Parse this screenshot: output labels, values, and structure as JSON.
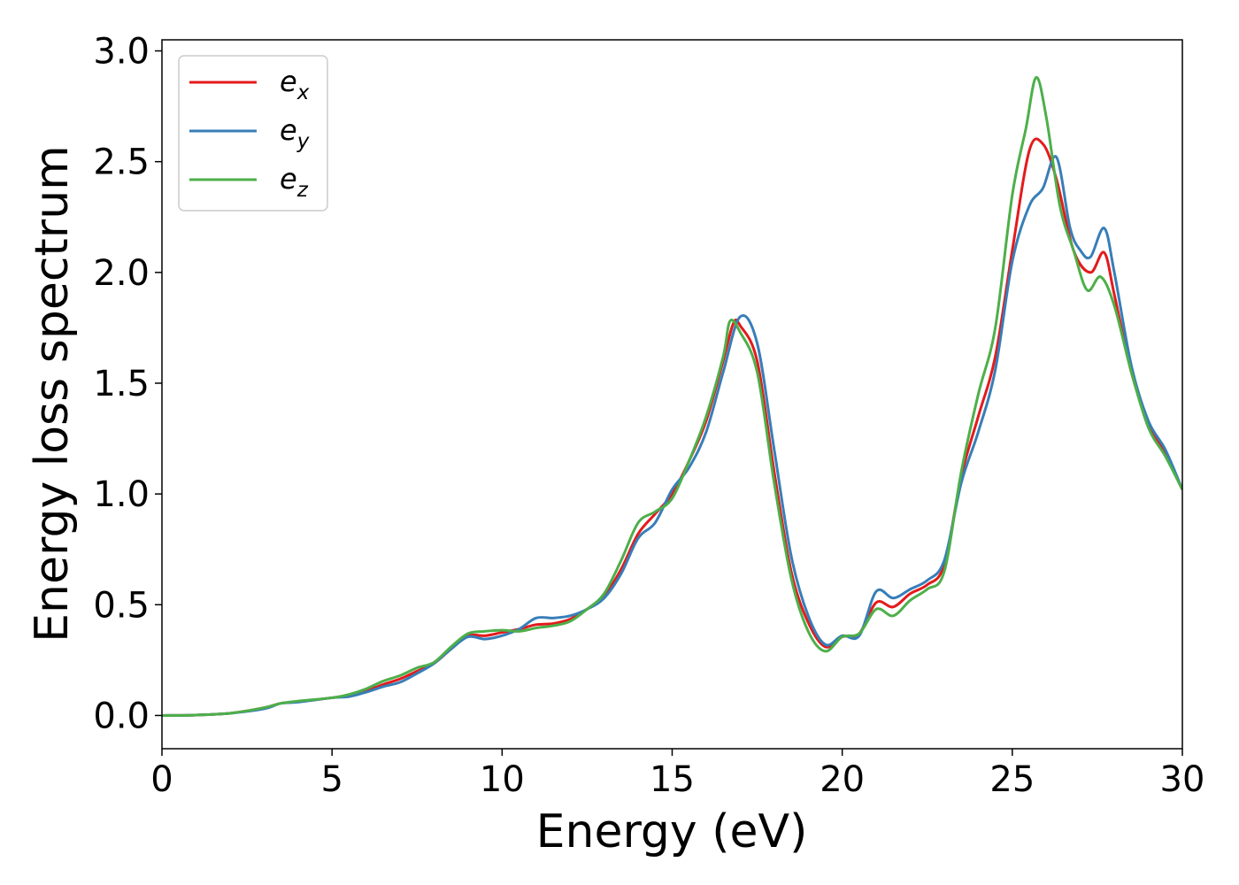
{
  "chart_data": {
    "type": "line",
    "title": "",
    "xlabel": "Energy (eV)",
    "ylabel": "Energy loss spectrum",
    "xlim": [
      0,
      30
    ],
    "ylim": [
      -0.15,
      3.05
    ],
    "xticks": [
      0,
      5,
      10,
      15,
      20,
      25,
      30
    ],
    "xtick_labels": [
      "0",
      "5",
      "10",
      "15",
      "20",
      "25",
      "30"
    ],
    "yticks": [
      0.0,
      0.5,
      1.0,
      1.5,
      2.0,
      2.5,
      3.0
    ],
    "ytick_labels": [
      "0.0",
      "0.5",
      "1.0",
      "1.5",
      "2.0",
      "2.5",
      "3.0"
    ],
    "grid": false,
    "legend_position": "top-left",
    "series": [
      {
        "name": "e_x",
        "legend_base": "e",
        "legend_sub": "x",
        "color": "#e41a1c",
        "points": [
          [
            0,
            0
          ],
          [
            1,
            0.002
          ],
          [
            2,
            0.01
          ],
          [
            3,
            0.035
          ],
          [
            3.5,
            0.055
          ],
          [
            4,
            0.062
          ],
          [
            5,
            0.08
          ],
          [
            5.5,
            0.09
          ],
          [
            6,
            0.11
          ],
          [
            6.5,
            0.14
          ],
          [
            7,
            0.165
          ],
          [
            7.5,
            0.2
          ],
          [
            8,
            0.235
          ],
          [
            8.5,
            0.3
          ],
          [
            9,
            0.36
          ],
          [
            9.5,
            0.36
          ],
          [
            10,
            0.375
          ],
          [
            10.5,
            0.39
          ],
          [
            11,
            0.41
          ],
          [
            11.5,
            0.415
          ],
          [
            12,
            0.435
          ],
          [
            12.5,
            0.48
          ],
          [
            13,
            0.54
          ],
          [
            13.5,
            0.66
          ],
          [
            14,
            0.82
          ],
          [
            14.5,
            0.91
          ],
          [
            15,
            1.0
          ],
          [
            15.5,
            1.15
          ],
          [
            16,
            1.33
          ],
          [
            16.5,
            1.6
          ],
          [
            16.8,
            1.77
          ],
          [
            17,
            1.76
          ],
          [
            17.5,
            1.6
          ],
          [
            18,
            1.1
          ],
          [
            18.5,
            0.65
          ],
          [
            19,
            0.42
          ],
          [
            19.5,
            0.31
          ],
          [
            20,
            0.355
          ],
          [
            20.5,
            0.37
          ],
          [
            21,
            0.51
          ],
          [
            21.5,
            0.49
          ],
          [
            22,
            0.55
          ],
          [
            22.5,
            0.59
          ],
          [
            23,
            0.68
          ],
          [
            23.5,
            1.08
          ],
          [
            24,
            1.35
          ],
          [
            24.5,
            1.62
          ],
          [
            25,
            2.1
          ],
          [
            25.5,
            2.55
          ],
          [
            25.9,
            2.58
          ],
          [
            26.3,
            2.42
          ],
          [
            26.8,
            2.1
          ],
          [
            27.3,
            2.0
          ],
          [
            27.7,
            2.09
          ],
          [
            28,
            1.9
          ],
          [
            28.5,
            1.55
          ],
          [
            29,
            1.32
          ],
          [
            29.5,
            1.18
          ],
          [
            30,
            1.02
          ]
        ]
      },
      {
        "name": "e_y",
        "legend_base": "e",
        "legend_sub": "y",
        "color": "#377eb8",
        "points": [
          [
            0,
            0
          ],
          [
            1,
            0.002
          ],
          [
            2,
            0.01
          ],
          [
            3,
            0.03
          ],
          [
            3.5,
            0.055
          ],
          [
            4,
            0.06
          ],
          [
            5,
            0.08
          ],
          [
            5.5,
            0.085
          ],
          [
            6,
            0.105
          ],
          [
            6.5,
            0.13
          ],
          [
            7,
            0.15
          ],
          [
            7.5,
            0.19
          ],
          [
            8,
            0.235
          ],
          [
            8.5,
            0.3
          ],
          [
            9,
            0.355
          ],
          [
            9.5,
            0.345
          ],
          [
            10,
            0.36
          ],
          [
            10.5,
            0.39
          ],
          [
            11,
            0.44
          ],
          [
            11.5,
            0.44
          ],
          [
            12,
            0.45
          ],
          [
            12.5,
            0.48
          ],
          [
            13,
            0.53
          ],
          [
            13.5,
            0.64
          ],
          [
            14,
            0.8
          ],
          [
            14.5,
            0.87
          ],
          [
            15,
            1.02
          ],
          [
            15.5,
            1.12
          ],
          [
            16,
            1.28
          ],
          [
            16.5,
            1.55
          ],
          [
            17,
            1.8
          ],
          [
            17.5,
            1.68
          ],
          [
            18,
            1.2
          ],
          [
            18.5,
            0.72
          ],
          [
            19,
            0.45
          ],
          [
            19.5,
            0.32
          ],
          [
            20,
            0.36
          ],
          [
            20.5,
            0.36
          ],
          [
            21,
            0.56
          ],
          [
            21.5,
            0.53
          ],
          [
            22,
            0.57
          ],
          [
            22.5,
            0.61
          ],
          [
            23,
            0.7
          ],
          [
            23.5,
            1.05
          ],
          [
            24,
            1.28
          ],
          [
            24.5,
            1.56
          ],
          [
            25,
            2.05
          ],
          [
            25.5,
            2.3
          ],
          [
            25.9,
            2.38
          ],
          [
            26.3,
            2.52
          ],
          [
            26.7,
            2.2
          ],
          [
            27,
            2.1
          ],
          [
            27.3,
            2.07
          ],
          [
            27.7,
            2.2
          ],
          [
            28,
            2.0
          ],
          [
            28.5,
            1.58
          ],
          [
            29,
            1.33
          ],
          [
            29.5,
            1.2
          ],
          [
            30,
            1.02
          ]
        ]
      },
      {
        "name": "e_z",
        "legend_base": "e",
        "legend_sub": "z",
        "color": "#4daf4a",
        "points": [
          [
            0,
            0
          ],
          [
            1,
            0.002
          ],
          [
            2,
            0.01
          ],
          [
            3,
            0.035
          ],
          [
            3.5,
            0.055
          ],
          [
            4,
            0.065
          ],
          [
            5,
            0.08
          ],
          [
            5.5,
            0.095
          ],
          [
            6,
            0.12
          ],
          [
            6.5,
            0.155
          ],
          [
            7,
            0.18
          ],
          [
            7.5,
            0.215
          ],
          [
            8,
            0.24
          ],
          [
            8.5,
            0.31
          ],
          [
            9,
            0.37
          ],
          [
            9.5,
            0.38
          ],
          [
            10,
            0.385
          ],
          [
            10.5,
            0.38
          ],
          [
            11,
            0.395
          ],
          [
            11.5,
            0.405
          ],
          [
            12,
            0.425
          ],
          [
            12.5,
            0.48
          ],
          [
            13,
            0.55
          ],
          [
            13.5,
            0.7
          ],
          [
            14,
            0.87
          ],
          [
            14.5,
            0.92
          ],
          [
            15,
            0.98
          ],
          [
            15.5,
            1.15
          ],
          [
            16,
            1.35
          ],
          [
            16.5,
            1.62
          ],
          [
            16.7,
            1.78
          ],
          [
            17,
            1.73
          ],
          [
            17.5,
            1.55
          ],
          [
            18,
            1.05
          ],
          [
            18.5,
            0.62
          ],
          [
            19,
            0.38
          ],
          [
            19.5,
            0.29
          ],
          [
            20,
            0.355
          ],
          [
            20.5,
            0.37
          ],
          [
            21,
            0.48
          ],
          [
            21.5,
            0.45
          ],
          [
            22,
            0.52
          ],
          [
            22.5,
            0.57
          ],
          [
            23,
            0.65
          ],
          [
            23.5,
            1.1
          ],
          [
            24,
            1.45
          ],
          [
            24.5,
            1.75
          ],
          [
            25,
            2.35
          ],
          [
            25.4,
            2.65
          ],
          [
            25.7,
            2.88
          ],
          [
            26,
            2.7
          ],
          [
            26.4,
            2.3
          ],
          [
            26.8,
            2.1
          ],
          [
            27.2,
            1.92
          ],
          [
            27.6,
            1.98
          ],
          [
            28,
            1.85
          ],
          [
            28.5,
            1.55
          ],
          [
            29,
            1.3
          ],
          [
            29.5,
            1.17
          ],
          [
            30,
            1.02
          ]
        ]
      }
    ]
  }
}
